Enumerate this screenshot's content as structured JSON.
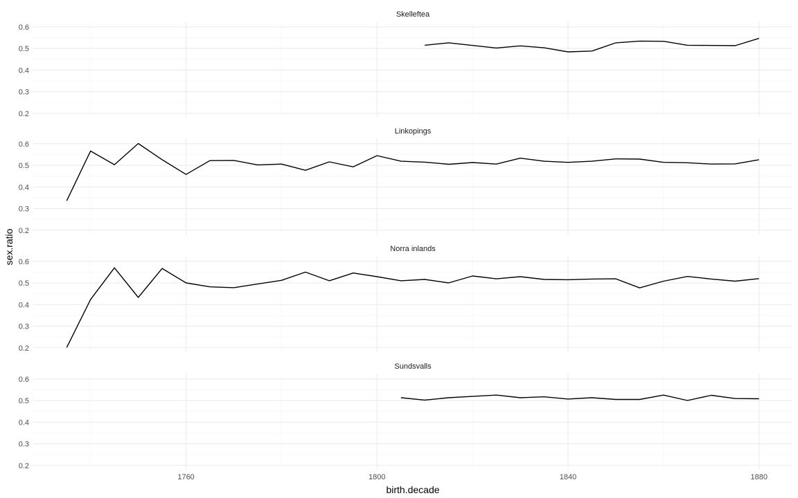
{
  "chart_data": {
    "type": "line",
    "faceted": true,
    "xlabel": "birth.decade",
    "ylabel": "sex.ratio",
    "xlim": [
      1728,
      1887
    ],
    "ylim": [
      0.18,
      0.625
    ],
    "x_ticks": [
      1760,
      1800,
      1840,
      1880
    ],
    "x_tick_labels": [
      "1760",
      "1800",
      "1840",
      "1880"
    ],
    "y_ticks": [
      0.2,
      0.3,
      0.4,
      0.5,
      0.6
    ],
    "y_tick_labels": [
      "0.2",
      "0.3",
      "0.4",
      "0.5",
      "0.6"
    ],
    "grid": true,
    "line_color": "#000000",
    "grid_major_color": "#ebebeb",
    "grid_minor_color": "#f4f4f4",
    "facets": [
      {
        "label": "Skelleftea",
        "x": [
          1810,
          1815,
          1820,
          1825,
          1830,
          1835,
          1840,
          1845,
          1850,
          1855,
          1860,
          1865,
          1870,
          1875,
          1880
        ],
        "values": [
          0.515,
          0.526,
          0.514,
          0.502,
          0.512,
          0.503,
          0.484,
          0.488,
          0.526,
          0.534,
          0.533,
          0.515,
          0.514,
          0.513,
          0.547
        ]
      },
      {
        "label": "Linkopings",
        "x": [
          1735,
          1740,
          1745,
          1750,
          1755,
          1760,
          1765,
          1770,
          1775,
          1780,
          1785,
          1790,
          1795,
          1800,
          1805,
          1810,
          1815,
          1820,
          1825,
          1830,
          1835,
          1840,
          1845,
          1850,
          1855,
          1860,
          1865,
          1870,
          1875,
          1880
        ],
        "values": [
          0.336,
          0.566,
          0.503,
          0.601,
          0.526,
          0.458,
          0.522,
          0.523,
          0.502,
          0.506,
          0.477,
          0.516,
          0.493,
          0.545,
          0.519,
          0.515,
          0.505,
          0.513,
          0.506,
          0.533,
          0.519,
          0.514,
          0.519,
          0.53,
          0.529,
          0.514,
          0.512,
          0.506,
          0.507,
          0.526
        ]
      },
      {
        "label": "Norra inlands",
        "x": [
          1735,
          1740,
          1745,
          1750,
          1755,
          1760,
          1765,
          1770,
          1775,
          1780,
          1785,
          1790,
          1795,
          1800,
          1805,
          1810,
          1815,
          1820,
          1825,
          1830,
          1835,
          1840,
          1845,
          1850,
          1855,
          1860,
          1865,
          1870,
          1875,
          1880
        ],
        "values": [
          0.201,
          0.423,
          0.57,
          0.433,
          0.567,
          0.5,
          0.482,
          0.478,
          0.495,
          0.512,
          0.55,
          0.51,
          0.546,
          0.529,
          0.51,
          0.516,
          0.5,
          0.532,
          0.519,
          0.529,
          0.516,
          0.515,
          0.518,
          0.519,
          0.477,
          0.508,
          0.53,
          0.518,
          0.508,
          0.52
        ]
      },
      {
        "label": "Sundsvalls",
        "x": [
          1805,
          1810,
          1815,
          1820,
          1825,
          1830,
          1835,
          1840,
          1845,
          1850,
          1855,
          1860,
          1865,
          1870,
          1875,
          1880
        ],
        "values": [
          0.513,
          0.502,
          0.513,
          0.519,
          0.525,
          0.513,
          0.517,
          0.507,
          0.513,
          0.505,
          0.505,
          0.525,
          0.5,
          0.524,
          0.509,
          0.508
        ]
      }
    ]
  }
}
